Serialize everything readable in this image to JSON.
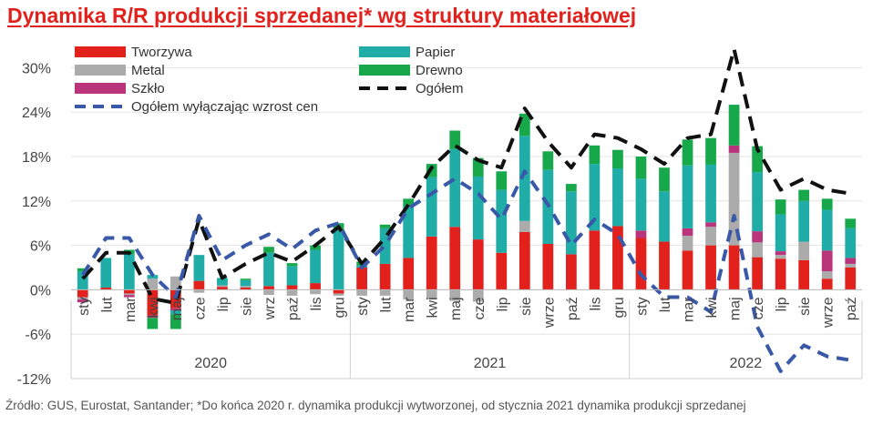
{
  "title": "Dynamika R/R produkcji sprzedanej* wg struktury materiałowej",
  "source_note": "Źródło: GUS, Eurostat, Santander; *Do końca 2020 r. dynamika produkcji wytworzonej, od stycznia 2021 dynamika produkcji sprzedanej",
  "chart_data": {
    "type": "bar",
    "stacked": true,
    "title": "Dynamika R/R produkcji sprzedanej* wg struktury materiałowej",
    "xlabel": "",
    "ylabel": "",
    "ylim": [
      -12,
      33
    ],
    "yticks": [
      -12,
      -6,
      0,
      6,
      12,
      18,
      24,
      30
    ],
    "ytick_labels": [
      "-12%",
      "-6%",
      "0%",
      "6%",
      "12%",
      "18%",
      "24%",
      "30%"
    ],
    "grid": true,
    "legend_position": "top-left",
    "categories": [
      "sty",
      "lut",
      "mar",
      "kwi",
      "maj",
      "cze",
      "lip",
      "sie",
      "wrz",
      "paź",
      "lis",
      "gru",
      "sty",
      "lut",
      "mar",
      "kwi",
      "maj",
      "cze",
      "lip",
      "sie",
      "wrze",
      "paź",
      "lis",
      "gru",
      "sty",
      "lut",
      "mar",
      "kwi",
      "maj",
      "cze",
      "lip",
      "sie",
      "wrze",
      "paź"
    ],
    "year_groups": [
      {
        "label": "2020",
        "start": 0,
        "end": 11
      },
      {
        "label": "2021",
        "start": 12,
        "end": 23
      },
      {
        "label": "2022",
        "start": 24,
        "end": 33
      }
    ],
    "series": [
      {
        "name": "Tworzywa",
        "color": "#e2211c",
        "values": [
          -1.0,
          0.3,
          -0.5,
          -3.5,
          -2.5,
          1.2,
          0.4,
          0.3,
          0.5,
          0.6,
          0.9,
          -0.5,
          3.0,
          3.5,
          4.3,
          7.2,
          8.5,
          6.8,
          5.0,
          7.8,
          6.2,
          4.8,
          8.0,
          8.6,
          7.0,
          6.5,
          5.3,
          6.0,
          6.0,
          4.4,
          4.2,
          4.0,
          1.5,
          3.0
        ]
      },
      {
        "name": "Metal",
        "color": "#ababab",
        "values": [
          -0.3,
          0.0,
          -0.2,
          1.5,
          1.8,
          -0.4,
          0.2,
          0.2,
          -0.7,
          -0.8,
          -0.6,
          -0.3,
          -0.8,
          -0.8,
          -1.3,
          -1.3,
          -1.5,
          -1.6,
          0.0,
          1.5,
          0.0,
          0.0,
          0.0,
          0.0,
          0.0,
          0.0,
          2.0,
          2.5,
          12.5,
          2.0,
          0.5,
          2.5,
          1.0,
          0.5
        ]
      },
      {
        "name": "Szkło",
        "color": "#b9347b",
        "values": [
          -0.4,
          0.0,
          -0.3,
          -0.3,
          -0.3,
          0.0,
          0.0,
          0.0,
          0.0,
          0.0,
          0.0,
          0.0,
          0.0,
          0.0,
          0.0,
          0.0,
          0.0,
          0.0,
          0.0,
          0.0,
          0.0,
          0.0,
          0.0,
          0.0,
          1.0,
          0.0,
          1.0,
          0.6,
          1.0,
          1.5,
          0.5,
          0.0,
          2.8,
          0.8
        ]
      },
      {
        "name": "Papier",
        "color": "#20ada7",
        "values": [
          2.5,
          4.0,
          4.8,
          0.5,
          -0.5,
          3.5,
          1.0,
          0.8,
          4.5,
          2.6,
          4.5,
          8.0,
          0.3,
          4.8,
          7.0,
          8.0,
          10.5,
          8.5,
          8.5,
          11.5,
          10.0,
          8.5,
          9.0,
          7.8,
          7.0,
          6.8,
          8.5,
          7.8,
          0.0,
          8.0,
          5.0,
          5.5,
          5.5,
          4.0
        ]
      },
      {
        "name": "Drewno",
        "color": "#17a84c",
        "values": [
          0.4,
          0.0,
          0.6,
          -1.5,
          -2.0,
          0.0,
          0.0,
          0.2,
          0.8,
          0.4,
          0.6,
          1.0,
          0.5,
          0.5,
          1.0,
          1.8,
          2.5,
          2.5,
          2.5,
          3.0,
          2.5,
          1.0,
          2.5,
          2.5,
          3.0,
          3.2,
          3.5,
          3.6,
          5.5,
          3.5,
          2.0,
          1.5,
          1.5,
          1.3
        ]
      }
    ],
    "lines": [
      {
        "name": "Ogółem",
        "color": "#111111",
        "dash": "long",
        "values": [
          1.5,
          5.0,
          5.0,
          -1.2,
          -1.8,
          9.5,
          1.6,
          3.5,
          5.0,
          3.8,
          6.0,
          8.5,
          3.5,
          7.0,
          11.5,
          16.5,
          19.5,
          17.5,
          16.5,
          24.5,
          20.0,
          16.5,
          21.0,
          20.5,
          19.0,
          17.0,
          20.5,
          21.0,
          32.5,
          19.0,
          13.5,
          15.0,
          13.5,
          13.0
        ]
      },
      {
        "name": "Ogółem wyłączając wzrost cen",
        "color": "#3a58a8",
        "dash": "medium",
        "values": [
          2.0,
          7.0,
          7.0,
          2.0,
          -1.0,
          10.0,
          4.0,
          6.0,
          7.5,
          5.5,
          8.0,
          9.0,
          3.0,
          6.0,
          11.0,
          13.0,
          15.0,
          13.0,
          9.5,
          16.0,
          11.5,
          6.0,
          9.5,
          7.5,
          2.0,
          -1.0,
          -1.0,
          -3.0,
          10.0,
          -5.0,
          -11.0,
          -7.5,
          -9.0,
          -9.5
        ]
      }
    ]
  }
}
